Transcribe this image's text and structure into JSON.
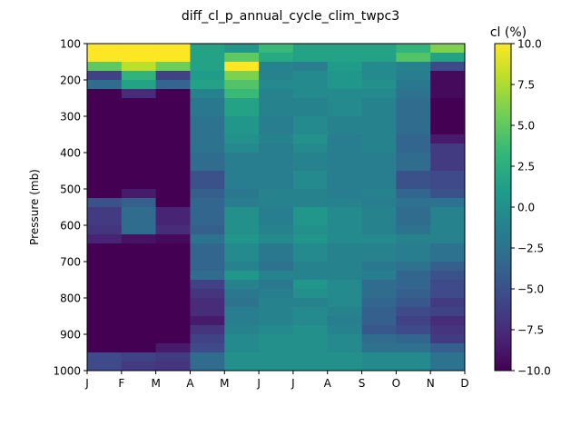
{
  "chart_data": {
    "type": "heatmap",
    "title": "diff_cl_p_annual_cycle_clim_twpc3",
    "xlabel": "",
    "ylabel": "Pressure (mb)",
    "x_categories": [
      "J",
      "F",
      "M",
      "A",
      "M",
      "J",
      "J",
      "A",
      "S",
      "O",
      "N",
      "D"
    ],
    "y_ticks": [
      100,
      200,
      300,
      400,
      500,
      600,
      700,
      800,
      900,
      1000
    ],
    "ylim": [
      1000,
      100
    ],
    "y_inverted": true,
    "pressure_levels": [
      100,
      125,
      150,
      175,
      200,
      225,
      250,
      300,
      350,
      375,
      400,
      450,
      500,
      525,
      550,
      600,
      625,
      650,
      700,
      725,
      750,
      775,
      800,
      825,
      850,
      875,
      900,
      925,
      950,
      975
    ],
    "pressure_bottom": 1000,
    "colorbar": {
      "label": "cl (%)",
      "min": -10,
      "max": 10,
      "ticks": [
        10.0,
        7.5,
        5.0,
        2.5,
        0.0,
        -2.5,
        -5.0,
        -7.5,
        -10.0
      ],
      "tick_labels": [
        "10.0",
        "7.5",
        "5.0",
        "2.5",
        "0.0",
        "−2.5",
        "−5.0",
        "−7.5",
        "−10.0"
      ],
      "colormap": "viridis"
    },
    "values": [
      [
        12,
        12,
        12,
        1.5,
        0.5,
        3.5,
        1.5,
        1.5,
        1.5,
        3.0,
        6.0
      ],
      [
        12,
        12,
        12,
        1.5,
        5.0,
        2.0,
        1.5,
        1.5,
        1.5,
        4.5,
        1.5
      ],
      [
        5.0,
        8.0,
        5.5,
        1.5,
        10.0,
        -1.0,
        -1.5,
        1.0,
        -0.5,
        -1.0,
        -5.5
      ],
      [
        -6.0,
        3.0,
        -6.0,
        1.0,
        6.0,
        -1.0,
        -0.5,
        0.5,
        -0.5,
        -1.5,
        -9.5
      ],
      [
        -3.0,
        1.5,
        -3.5,
        1.5,
        4.5,
        -0.5,
        -0.5,
        0.5,
        0.0,
        -2.0,
        -9.5
      ],
      [
        -10,
        -7.5,
        -10,
        -1.0,
        3.5,
        -1.0,
        -0.5,
        -0.5,
        -0.5,
        -2.5,
        -9.5
      ],
      [
        -10,
        -10,
        -10,
        -2.0,
        1.5,
        -1.0,
        -1.0,
        -0.5,
        -1.0,
        -3.0,
        -11
      ],
      [
        -10,
        -10,
        -10,
        -2.5,
        0.5,
        -1.5,
        -0.5,
        -1.0,
        -1.0,
        -3.0,
        -11
      ],
      [
        -10,
        -10,
        -10,
        -2.5,
        0.0,
        -1.0,
        0.0,
        -1.5,
        -1.0,
        -3.5,
        -8.5
      ],
      [
        -10,
        -10,
        -10,
        -2.5,
        -0.5,
        -1.5,
        -0.5,
        -1.5,
        -1.0,
        -3.5,
        -6.5
      ],
      [
        -10,
        -10,
        -10,
        -3.0,
        -1.5,
        -1.5,
        -1.0,
        -1.5,
        -1.5,
        -3.0,
        -6.5
      ],
      [
        -10,
        -10,
        -10,
        -5.0,
        -1.5,
        -1.5,
        -0.5,
        -1.5,
        -1.5,
        -5.0,
        -5.5
      ],
      [
        -10,
        -8.5,
        -10,
        -4.0,
        -2.0,
        -1.0,
        -1.0,
        -1.5,
        -1.0,
        -3.5,
        -5.0
      ],
      [
        -5.0,
        -4.0,
        -10,
        -3.5,
        -1.5,
        -1.0,
        -1.0,
        -1.0,
        -1.5,
        -2.5,
        -2.5
      ],
      [
        -6.5,
        -3.0,
        -8.0,
        -3.5,
        0.0,
        -1.5,
        0.5,
        -0.5,
        -1.0,
        -3.0,
        -1.0
      ],
      [
        -7.0,
        -3.0,
        -7.5,
        -4.0,
        0.0,
        -1.0,
        0.0,
        -0.5,
        -1.0,
        -2.5,
        -1.0
      ],
      [
        -8.0,
        -9.0,
        -9.5,
        -2.5,
        0.5,
        -0.5,
        0.5,
        -0.5,
        -0.5,
        -1.0,
        -1.0
      ],
      [
        -10,
        -10,
        -10,
        -3.5,
        -0.5,
        -2.0,
        -0.5,
        -1.0,
        -1.0,
        -1.5,
        -2.5
      ],
      [
        -10,
        -10,
        -10,
        -3.5,
        -1.0,
        -2.5,
        -1.0,
        -1.0,
        -2.0,
        -2.5,
        -4.0
      ],
      [
        -10,
        -10,
        -10,
        -3.0,
        0.5,
        -1.0,
        -1.0,
        -1.0,
        -1.5,
        -3.5,
        -5.0
      ],
      [
        -10,
        -10,
        -10,
        -6.0,
        -1.0,
        -2.0,
        0.5,
        -0.5,
        -3.0,
        -3.5,
        -5.5
      ],
      [
        -10,
        -10,
        -10,
        -7.0,
        -2.0,
        -1.5,
        0.0,
        -0.5,
        -3.0,
        -4.0,
        -5.5
      ],
      [
        -10,
        -10,
        -10,
        -7.5,
        -2.5,
        -1.0,
        -1.0,
        -0.5,
        -3.5,
        -4.5,
        -6.5
      ],
      [
        -10,
        -10,
        -10,
        -7.5,
        -1.5,
        -1.0,
        -0.5,
        -1.0,
        -4.0,
        -5.5,
        -6.0
      ],
      [
        -10,
        -10,
        -10,
        -8.5,
        -1.5,
        -1.0,
        -0.5,
        -1.5,
        -4.0,
        -6.0,
        -7.5
      ],
      [
        -10,
        -10,
        -10,
        -7.0,
        -1.0,
        -0.5,
        0.0,
        -1.0,
        -4.5,
        -5.5,
        -7.0
      ],
      [
        -10,
        -10,
        -10,
        -6.0,
        -0.5,
        0.0,
        0.0,
        -0.5,
        -3.0,
        -3.5,
        -6.5
      ],
      [
        -10,
        -10,
        -8.5,
        -5.5,
        -0.5,
        0.0,
        0.0,
        -0.5,
        -2.5,
        -2.5,
        -4.0
      ],
      [
        -5.5,
        -6.0,
        -6.5,
        -3.0,
        0.0,
        0.0,
        0.0,
        0.0,
        -0.5,
        -0.5,
        -2.5
      ],
      [
        -5.5,
        -6.5,
        -7.0,
        -3.0,
        0.0,
        0.0,
        0.0,
        0.0,
        -0.5,
        -0.5,
        -2.5
      ]
    ]
  }
}
